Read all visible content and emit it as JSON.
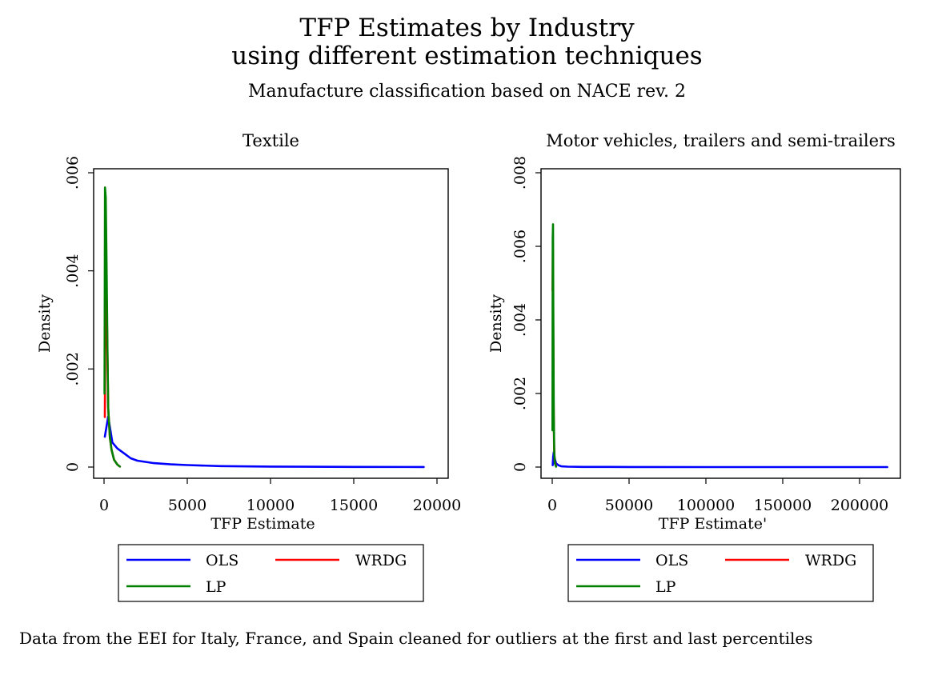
{
  "title_lines": [
    "TFP Estimates by Industry",
    "using different estimation techniques"
  ],
  "subtitle": "Manufacture classification based on NACE rev. 2",
  "note": "Data from the EEI for Italy, France, and Spain  cleaned for outliers at the first and last percentiles",
  "colors": {
    "OLS": "#0000ff",
    "WRDG": "#ff0000",
    "LP": "#008000"
  },
  "chart_data": [
    {
      "type": "line",
      "title": "Textile",
      "xlabel": "TFP Estimate",
      "ylabel": "Density",
      "xlim": [
        0,
        20000
      ],
      "ylim": [
        0,
        0.006
      ],
      "x_ticks": [
        0,
        5000,
        10000,
        15000,
        20000
      ],
      "x_tick_labels": [
        "0",
        "5000",
        "10000",
        "15000",
        "20000"
      ],
      "y_ticks": [
        0,
        0.002,
        0.004,
        0.006
      ],
      "y_tick_labels": [
        "0",
        ".002",
        ".004",
        ".006"
      ],
      "grid": false,
      "legend": {
        "placement": "bottom",
        "entries": [
          "OLS",
          "WRDG",
          "LP"
        ]
      },
      "series": [
        {
          "name": "OLS",
          "x": [
            50,
            250,
            500,
            800,
            1200,
            1600,
            2000,
            3000,
            4000,
            5000,
            7000,
            10000,
            15000,
            19200
          ],
          "y": [
            0.00062,
            0.00103,
            0.0005,
            0.00038,
            0.00028,
            0.00018,
            0.00013,
            8e-05,
            5.5e-05,
            4e-05,
            2e-05,
            1e-05,
            3e-06,
            1e-06
          ]
        },
        {
          "name": "WRDG",
          "x": [
            50,
            100,
            150,
            250,
            350,
            450,
            600,
            800,
            950
          ],
          "y": [
            0.00102,
            0.0045,
            0.0036,
            0.0012,
            0.0006,
            0.00035,
            0.00015,
            5e-05,
            1e-05
          ]
        },
        {
          "name": "LP",
          "x": [
            30,
            60,
            100,
            150,
            200,
            250,
            350,
            450,
            600,
            800,
            950
          ],
          "y": [
            0.0015,
            0.0057,
            0.0055,
            0.0042,
            0.0025,
            0.0012,
            0.0006,
            0.00035,
            0.00015,
            5e-05,
            1e-05
          ]
        }
      ]
    },
    {
      "type": "line",
      "title": "Motor vehicles, trailers and semi-trailers",
      "xlabel": "TFP Estimate'",
      "ylabel": "Density",
      "xlim": [
        0,
        200000
      ],
      "ylim": [
        0,
        0.008
      ],
      "x_ticks": [
        0,
        50000,
        100000,
        150000,
        200000
      ],
      "x_tick_labels": [
        "0",
        "50000",
        "100000",
        "150000",
        "200000"
      ],
      "y_ticks": [
        0,
        0.002,
        0.004,
        0.006,
        0.008
      ],
      "y_tick_labels": [
        "0",
        ".002",
        ".004",
        ".006",
        ".008"
      ],
      "grid": false,
      "legend": {
        "placement": "bottom",
        "entries": [
          "OLS",
          "WRDG",
          "LP"
        ]
      },
      "series": [
        {
          "name": "OLS",
          "x": [
            300,
            600,
            1000,
            1500,
            2500,
            4000,
            6000,
            10000,
            20000,
            50000,
            100000,
            150000,
            200000,
            218000
          ],
          "y": [
            5e-05,
            0.00028,
            0.0004,
            0.00025,
            0.0001,
            5e-05,
            2e-05,
            1e-05,
            4e-06,
            2e-06,
            1e-06,
            5e-07,
            2e-07,
            1e-07
          ]
        },
        {
          "name": "WRDG",
          "x": [
            200,
            400,
            600,
            900,
            1200,
            1600,
            2500
          ],
          "y": [
            0.0048,
            0.0059,
            0.004,
            0.0018,
            0.0006,
            0.00015,
            2e-05
          ]
        },
        {
          "name": "LP",
          "x": [
            150,
            300,
            500,
            700,
            1000,
            1300,
            1700,
            2500
          ],
          "y": [
            0.001,
            0.0062,
            0.0066,
            0.0045,
            0.0015,
            0.0004,
            0.0001,
            1e-05
          ]
        }
      ]
    }
  ]
}
